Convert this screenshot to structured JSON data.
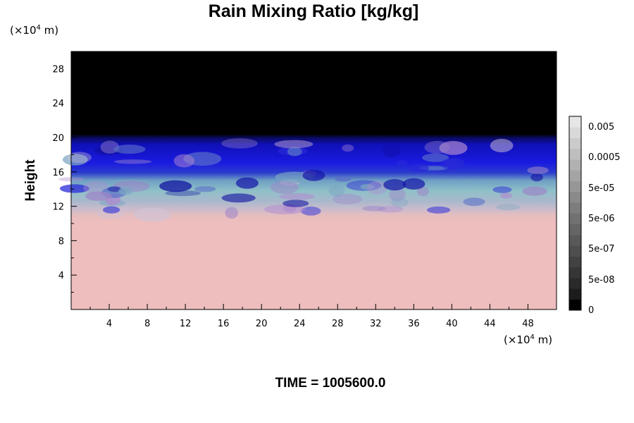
{
  "chart_data": {
    "type": "heatmap",
    "title": "Rain Mixing Ratio [kg/kg]",
    "ylabel": "Height",
    "xlabel": "",
    "x_unit_prefix": "(×10",
    "x_unit_exp": "4",
    "x_unit_suffix": " m)",
    "y_unit_prefix": "(×10",
    "y_unit_exp": "4",
    "y_unit_suffix": " m)",
    "xlim": [
      0,
      51
    ],
    "ylim": [
      0,
      30
    ],
    "x_ticks": [
      "4",
      "8",
      "12",
      "16",
      "20",
      "24",
      "28",
      "32",
      "36",
      "40",
      "44",
      "48"
    ],
    "y_ticks": [
      "4",
      "8",
      "12",
      "16",
      "20",
      "24",
      "28"
    ],
    "colorbar": {
      "labels": [
        "0",
        "5e-08",
        "5e-07",
        "5e-06",
        "5e-05",
        "0.0005",
        "0.005"
      ],
      "colors": [
        "#000000",
        "#1c1c1c",
        "#2a2a2a",
        "#363636",
        "#424242",
        "#4e4e4e",
        "#595959",
        "#656565",
        "#717171",
        "#7d7d7d",
        "#8a8a8a",
        "#979797",
        "#a4a4a4",
        "#b1b1b1",
        "#bebebe",
        "#cbcbcb",
        "#d9d9d9",
        "#e6e6e6"
      ]
    },
    "layers": [
      {
        "name": "black",
        "top": 30,
        "color": "#000000"
      },
      {
        "name": "blue",
        "top": 19.7,
        "color": "#1212c8"
      },
      {
        "name": "cyan",
        "top": 15.5,
        "color": "#86b8c6"
      },
      {
        "name": "lavender",
        "top": 13.2,
        "color": "#bfb6d0"
      },
      {
        "name": "pink",
        "top": 11.0,
        "color": "#eebdbd"
      }
    ],
    "footer_label": "TIME = 1005600.0"
  }
}
